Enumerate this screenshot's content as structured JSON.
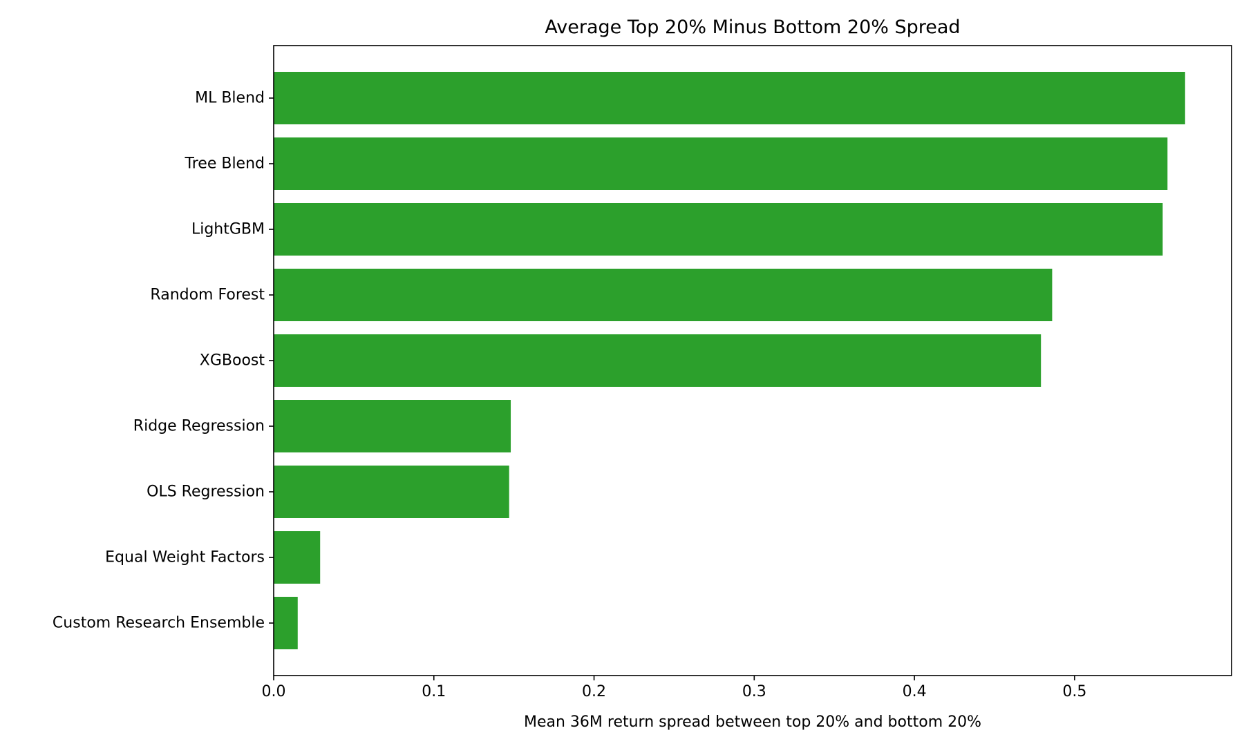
{
  "chart_data": {
    "type": "bar",
    "orientation": "horizontal",
    "title": "Average Top 20% Minus Bottom 20% Spread",
    "xlabel": "Mean 36M return spread between top 20% and bottom 20%",
    "ylabel": "",
    "xlim": [
      0.0,
      0.598
    ],
    "xticks": [
      "0.0",
      "0.1",
      "0.2",
      "0.3",
      "0.4",
      "0.5"
    ],
    "grid": false,
    "bar_color": "#2ca02c",
    "categories": [
      "ML Blend",
      "Tree Blend",
      "LightGBM",
      "Random Forest",
      "XGBoost",
      "Ridge Regression",
      "OLS Regression",
      "Equal Weight Factors",
      "Custom Research Ensemble"
    ],
    "values": [
      0.569,
      0.558,
      0.555,
      0.486,
      0.479,
      0.148,
      0.147,
      0.029,
      0.015
    ]
  }
}
